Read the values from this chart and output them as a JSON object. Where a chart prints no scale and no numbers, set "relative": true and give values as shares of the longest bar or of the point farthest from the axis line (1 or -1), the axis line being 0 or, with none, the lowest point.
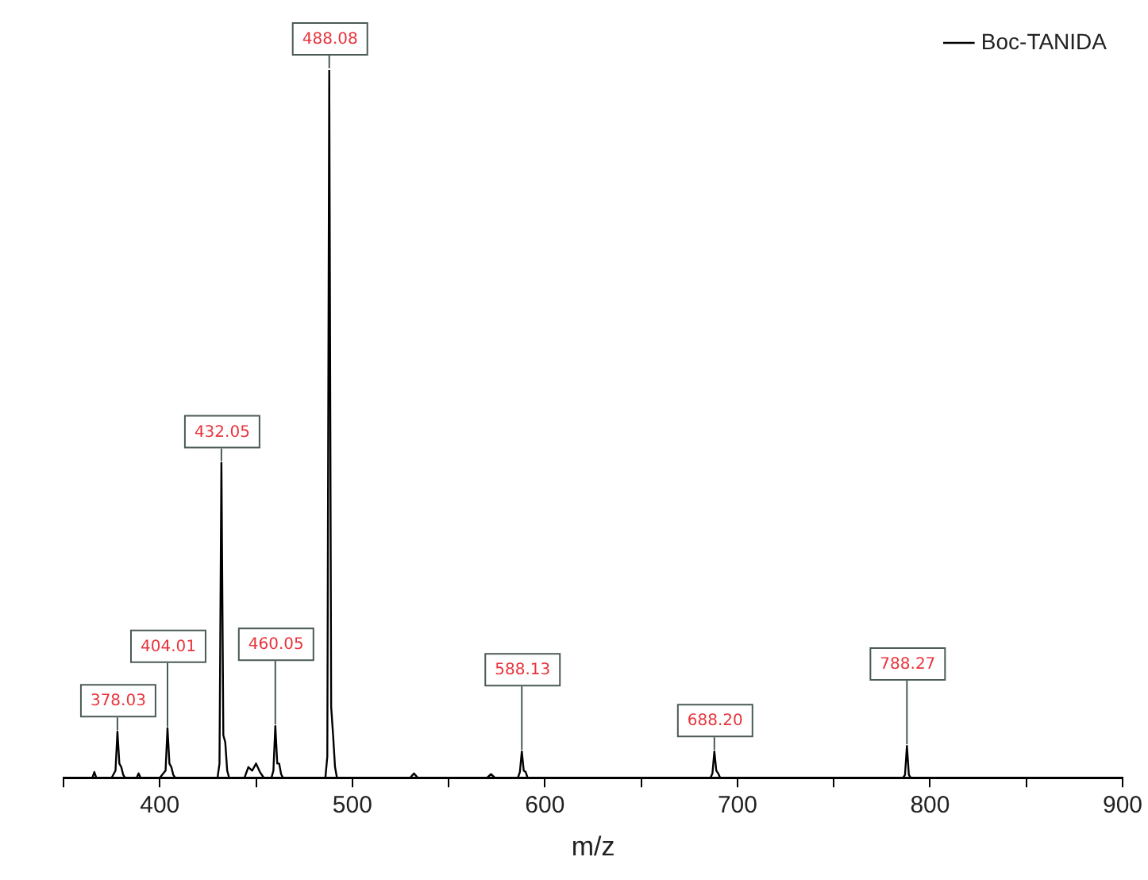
{
  "chart_data": {
    "type": "line",
    "relative": true,
    "xlabel": "m/z",
    "legend": "top right",
    "grid": false,
    "marker": "none",
    "line_style": "solid",
    "xlim": [
      350,
      900
    ],
    "xticks": [
      {
        "value": 350,
        "label": null
      },
      400,
      {
        "value": 450,
        "label": null
      },
      500,
      {
        "value": 550,
        "label": null
      },
      600,
      {
        "value": 650,
        "label": null
      },
      700,
      {
        "value": 750,
        "label": null
      },
      800,
      {
        "value": 850,
        "label": null
      },
      900
    ],
    "series": [
      {
        "name": "Boc-TANIDA",
        "color": "#000000",
        "x": [
          350,
          365,
          366,
          367,
          375,
          377,
          378,
          379,
          380,
          381,
          382,
          388,
          389,
          390,
          400,
          403,
          404,
          405,
          406,
          407,
          408,
          420,
          430,
          431,
          432,
          433,
          434,
          435,
          436,
          444,
          446,
          448,
          450,
          452,
          454,
          458,
          459,
          460,
          461,
          462,
          463,
          464,
          470,
          486,
          487,
          488,
          489,
          490,
          491,
          492,
          530,
          532,
          534,
          570,
          572,
          574,
          586,
          587,
          588,
          589,
          590,
          591,
          686,
          687,
          688,
          689,
          690,
          691,
          786,
          787,
          788,
          789,
          790,
          900
        ],
        "values": [
          0,
          0,
          0.008,
          0,
          0,
          0.01,
          0.065,
          0.02,
          0.015,
          0.004,
          0,
          0,
          0.006,
          0,
          0,
          0.01,
          0.07,
          0.02,
          0.015,
          0.004,
          0,
          0,
          0,
          0.02,
          0.445,
          0.06,
          0.05,
          0.01,
          0,
          0,
          0.015,
          0.01,
          0.02,
          0.008,
          0,
          0,
          0.01,
          0.073,
          0.02,
          0.02,
          0.005,
          0,
          0,
          0,
          0.03,
          1,
          0.1,
          0.06,
          0.015,
          0,
          0,
          0.006,
          0,
          0,
          0.005,
          0,
          0,
          0.008,
          0.037,
          0.01,
          0.008,
          0,
          0,
          0.006,
          0.037,
          0.01,
          0.006,
          0,
          0,
          0.004,
          0.045,
          0.004,
          0,
          0
        ]
      }
    ],
    "annotations": [
      {
        "text": "378.03",
        "x": 378,
        "y": 0.065
      },
      {
        "text": "404.01",
        "x": 404,
        "y": 0.07
      },
      {
        "text": "432.05",
        "x": 432,
        "y": 0.445
      },
      {
        "text": "460.05",
        "x": 460,
        "y": 0.073
      },
      {
        "text": "488.08",
        "x": 488,
        "y": 1
      },
      {
        "text": "588.13",
        "x": 588,
        "y": 0.037
      },
      {
        "text": "688.20",
        "x": 688,
        "y": 0.037
      },
      {
        "text": "788.27",
        "x": 788,
        "y": 0.045
      }
    ]
  }
}
